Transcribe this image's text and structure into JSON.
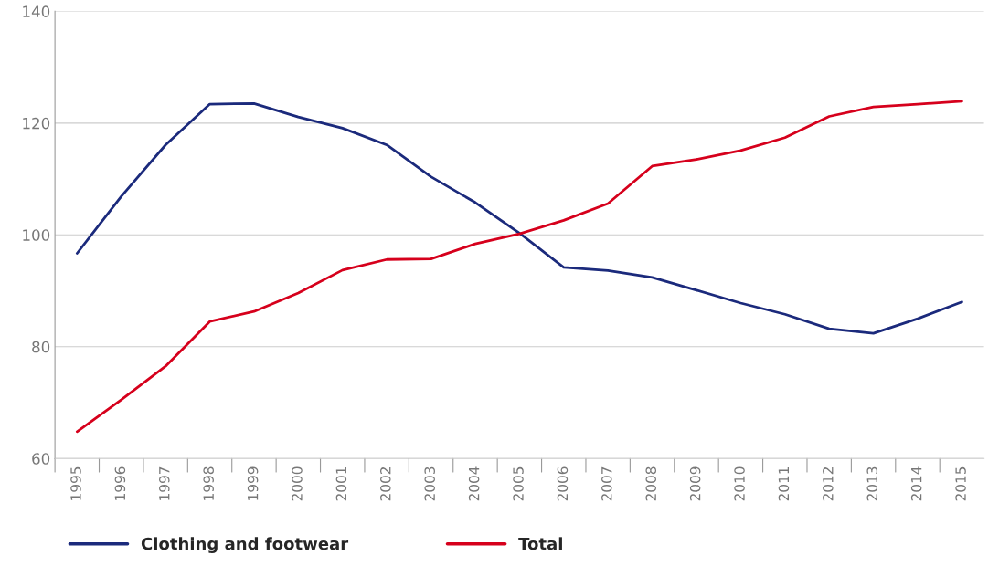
{
  "chart_data": {
    "type": "line",
    "categories": [
      "1995",
      "1996",
      "1997",
      "1998",
      "1999",
      "2000",
      "2001",
      "2002",
      "2003",
      "2004",
      "2005",
      "2006",
      "2007",
      "2008",
      "2009",
      "2010",
      "2011",
      "2012",
      "2013",
      "2014",
      "2015"
    ],
    "series": [
      {
        "name": "Clothing and footwear",
        "color": "#1b2a7c",
        "values": [
          96.7,
          106.9,
          116.1,
          123.4,
          123.5,
          121.1,
          119.1,
          116.1,
          110.4,
          105.8,
          100.3,
          94.2,
          93.6,
          92.4,
          90.1,
          87.8,
          85.8,
          83.2,
          82.4,
          85.0,
          88.0
        ]
      },
      {
        "name": "Total",
        "color": "#d6001c",
        "values": [
          64.8,
          70.5,
          76.5,
          84.5,
          86.3,
          89.6,
          93.7,
          95.6,
          95.7,
          98.4,
          100.2,
          102.6,
          105.6,
          112.3,
          113.5,
          115.1,
          117.4,
          121.2,
          122.9,
          123.4,
          123.9
        ]
      }
    ],
    "ylim": [
      60,
      140
    ],
    "yticks": [
      60,
      80,
      100,
      120,
      140
    ],
    "grid": "y",
    "legend": "bottom",
    "marker": "none",
    "line_style": "solid"
  }
}
